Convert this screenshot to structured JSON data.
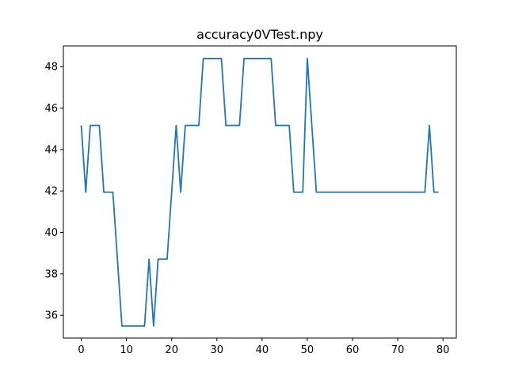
{
  "chart_data": {
    "type": "line",
    "title": "accuracy0VTest.npy",
    "xlabel": "",
    "ylabel": "",
    "xlim": [
      -3.95,
      82.95
    ],
    "ylim": [
      34.9,
      49.0
    ],
    "xticks": [
      0,
      10,
      20,
      30,
      40,
      50,
      60,
      70,
      80
    ],
    "yticks": [
      36,
      38,
      40,
      42,
      44,
      46,
      48
    ],
    "grid": false,
    "series": [
      {
        "color": "#1f77b4",
        "x": [
          0,
          1,
          2,
          3,
          4,
          5,
          6,
          7,
          8,
          9,
          10,
          11,
          12,
          13,
          14,
          15,
          16,
          17,
          18,
          19,
          20,
          21,
          22,
          23,
          24,
          25,
          26,
          27,
          28,
          29,
          30,
          31,
          32,
          33,
          34,
          35,
          36,
          37,
          38,
          39,
          40,
          41,
          42,
          43,
          44,
          45,
          46,
          47,
          48,
          49,
          50,
          51,
          52,
          53,
          54,
          55,
          56,
          57,
          58,
          59,
          60,
          61,
          62,
          63,
          64,
          65,
          66,
          67,
          68,
          69,
          70,
          71,
          72,
          73,
          74,
          75,
          76,
          77,
          78,
          79
        ],
        "values": [
          45.16,
          41.94,
          45.16,
          45.16,
          45.16,
          41.94,
          41.94,
          41.94,
          38.71,
          35.48,
          35.48,
          35.48,
          35.48,
          35.48,
          35.48,
          38.71,
          35.48,
          38.71,
          38.71,
          38.71,
          41.94,
          45.16,
          41.94,
          45.16,
          45.16,
          45.16,
          45.16,
          48.39,
          48.39,
          48.39,
          48.39,
          48.39,
          45.16,
          45.16,
          45.16,
          45.16,
          48.39,
          48.39,
          48.39,
          48.39,
          48.39,
          48.39,
          48.39,
          45.16,
          45.16,
          45.16,
          45.16,
          41.94,
          41.94,
          41.94,
          48.39,
          45.16,
          41.94,
          41.94,
          41.94,
          41.94,
          41.94,
          41.94,
          41.94,
          41.94,
          41.94,
          41.94,
          41.94,
          41.94,
          41.94,
          41.94,
          41.94,
          41.94,
          41.94,
          41.94,
          41.94,
          41.94,
          41.94,
          41.94,
          41.94,
          41.94,
          41.94,
          45.16,
          41.94,
          41.94
        ]
      }
    ]
  }
}
